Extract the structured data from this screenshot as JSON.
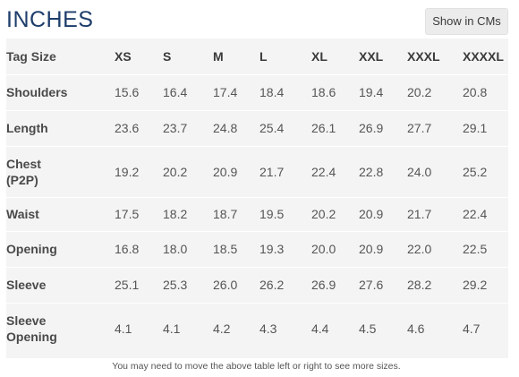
{
  "title": "INCHES",
  "toggle_label": "Show in CMs",
  "table": {
    "header_label": "Tag Size",
    "sizes": [
      "XS",
      "S",
      "M",
      "L",
      "XL",
      "XXL",
      "XXXL",
      "XXXXL"
    ],
    "rows": [
      {
        "label_lines": [
          "Shoulders"
        ],
        "values": [
          "15.6",
          "16.4",
          "17.4",
          "18.4",
          "18.6",
          "19.4",
          "20.2",
          "20.8"
        ]
      },
      {
        "label_lines": [
          "Length"
        ],
        "values": [
          "23.6",
          "23.7",
          "24.8",
          "25.4",
          "26.1",
          "26.9",
          "27.7",
          "29.1"
        ]
      },
      {
        "label_lines": [
          "Chest",
          "(P2P)"
        ],
        "values": [
          "19.2",
          "20.2",
          "20.9",
          "21.7",
          "22.4",
          "22.8",
          "24.0",
          "25.2"
        ]
      },
      {
        "label_lines": [
          "Waist"
        ],
        "values": [
          "17.5",
          "18.2",
          "18.7",
          "19.5",
          "20.2",
          "20.9",
          "21.7",
          "22.4"
        ]
      },
      {
        "label_lines": [
          "Opening"
        ],
        "values": [
          "16.8",
          "18.0",
          "18.5",
          "19.3",
          "20.0",
          "20.9",
          "22.0",
          "22.5"
        ]
      },
      {
        "label_lines": [
          "Sleeve"
        ],
        "values": [
          "25.1",
          "25.3",
          "26.0",
          "26.2",
          "26.9",
          "27.6",
          "28.2",
          "29.2"
        ]
      },
      {
        "label_lines": [
          "Sleeve",
          "Opening"
        ],
        "values": [
          "4.1",
          "4.1",
          "4.2",
          "4.3",
          "4.4",
          "4.5",
          "4.6",
          "4.7"
        ]
      }
    ]
  },
  "footnote": "You may need to move the above table left or right to see more sizes.",
  "colors": {
    "title": "#1d3d6b",
    "table_bg": "#f4f4f4",
    "button_bg": "#ececec"
  }
}
